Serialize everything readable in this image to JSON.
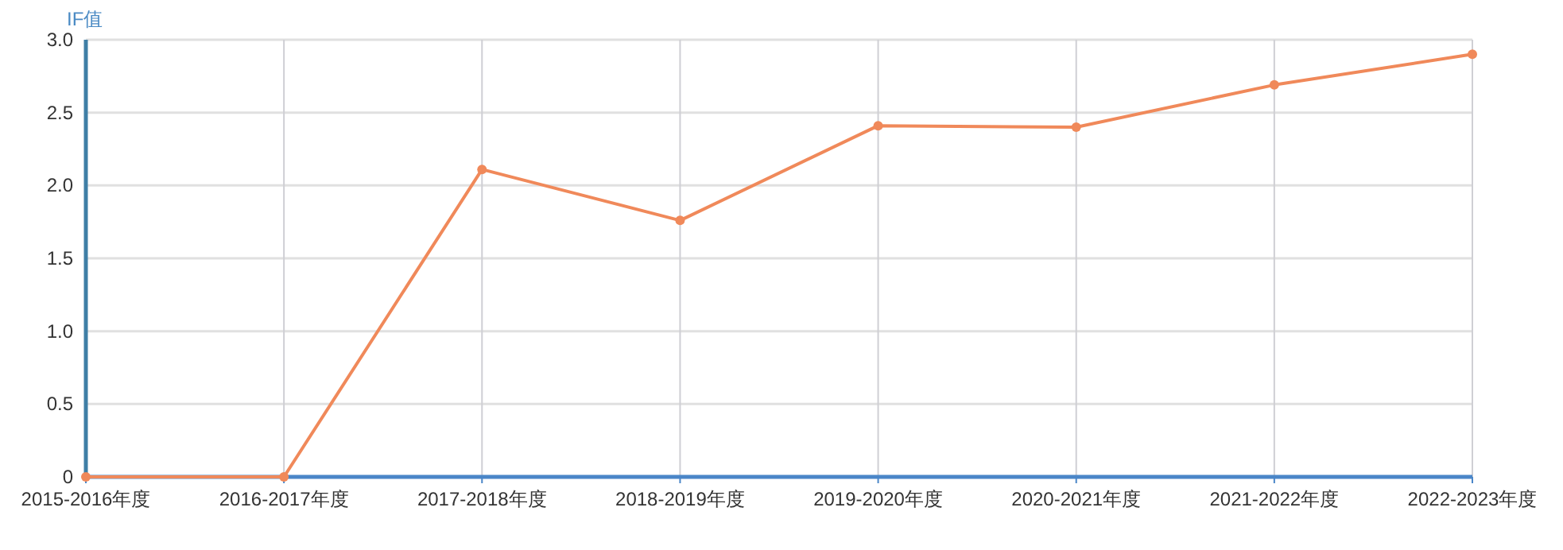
{
  "chart_data": {
    "type": "line",
    "ylabel": "IF值",
    "categories": [
      "2015-2016年度",
      "2016-2017年度",
      "2017-2018年度",
      "2018-2019年度",
      "2019-2020年度",
      "2020-2021年度",
      "2021-2022年度",
      "2022-2023年度"
    ],
    "series": [
      {
        "color": "#f0895a",
        "values": [
          0,
          0,
          2.11,
          1.76,
          2.41,
          2.4,
          2.69,
          2.9
        ]
      }
    ],
    "ylim": [
      0,
      3
    ],
    "yticks": [
      0,
      {
        "value": 0.5,
        "label": "0.5"
      },
      {
        "value": 1,
        "label": "1.0"
      },
      {
        "value": 1.5,
        "label": "1.5"
      },
      {
        "value": 2,
        "label": "2.0"
      },
      {
        "value": 2.5,
        "label": "2.5"
      },
      {
        "value": 3,
        "label": "3.0"
      }
    ],
    "grid": true,
    "marker": "circle",
    "line_style": "solid"
  }
}
